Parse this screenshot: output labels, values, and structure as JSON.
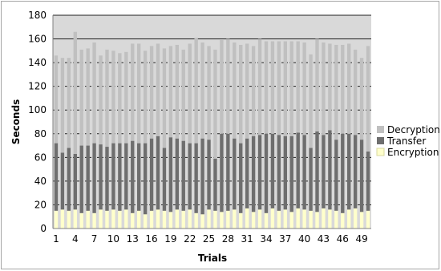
{
  "chart_data": {
    "type": "bar",
    "stacked": true,
    "xlabel": "Trials",
    "ylabel": "Seconds",
    "ylim": [
      0,
      180
    ],
    "yticks": [
      0,
      20,
      40,
      60,
      80,
      100,
      120,
      140,
      160,
      180
    ],
    "xtick_labels": [
      "1",
      "4",
      "7",
      "10",
      "13",
      "16",
      "19",
      "22",
      "25",
      "28",
      "31",
      "34",
      "37",
      "40",
      "43",
      "46",
      "49"
    ],
    "grid": true,
    "legend_position": "right",
    "categories": [
      1,
      2,
      3,
      4,
      5,
      6,
      7,
      8,
      9,
      10,
      11,
      12,
      13,
      14,
      15,
      16,
      17,
      18,
      19,
      20,
      21,
      22,
      23,
      24,
      25,
      26,
      27,
      28,
      29,
      30,
      31,
      32,
      33,
      34,
      35,
      36,
      37,
      38,
      39,
      40,
      41,
      42,
      43,
      44,
      45,
      46,
      47,
      48,
      49,
      50
    ],
    "series": [
      {
        "name": "Encryption",
        "color": "#ffffcc",
        "values": [
          15,
          16,
          15,
          16,
          13,
          15,
          13,
          16,
          15,
          16,
          15,
          16,
          13,
          15,
          12,
          15,
          16,
          15,
          14,
          16,
          15,
          16,
          13,
          12,
          16,
          15,
          14,
          15,
          16,
          13,
          17,
          14,
          16,
          13,
          17,
          15,
          16,
          14,
          17,
          16,
          15,
          14,
          17,
          16,
          15,
          13,
          16,
          17,
          14,
          15
        ]
      },
      {
        "name": "Transfer",
        "color": "#6e6e6e",
        "values": [
          57,
          48,
          53,
          47,
          57,
          55,
          59,
          55,
          54,
          56,
          57,
          56,
          61,
          57,
          60,
          61,
          62,
          53,
          63,
          60,
          59,
          56,
          59,
          64,
          59,
          44,
          66,
          65,
          60,
          59,
          59,
          64,
          63,
          67,
          63,
          64,
          62,
          64,
          64,
          63,
          53,
          68,
          62,
          67,
          60,
          67,
          64,
          62,
          61,
          50
        ]
      },
      {
        "name": "Decryption",
        "color": "#c0c0c0",
        "values": [
          74,
          80,
          76,
          103,
          81,
          82,
          85,
          75,
          82,
          78,
          76,
          77,
          82,
          84,
          78,
          78,
          78,
          84,
          77,
          79,
          77,
          84,
          89,
          81,
          79,
          92,
          79,
          80,
          81,
          83,
          80,
          76,
          81,
          78,
          78,
          79,
          80,
          80,
          77,
          78,
          79,
          78,
          78,
          73,
          80,
          75,
          76,
          72,
          69,
          89
        ]
      }
    ]
  }
}
